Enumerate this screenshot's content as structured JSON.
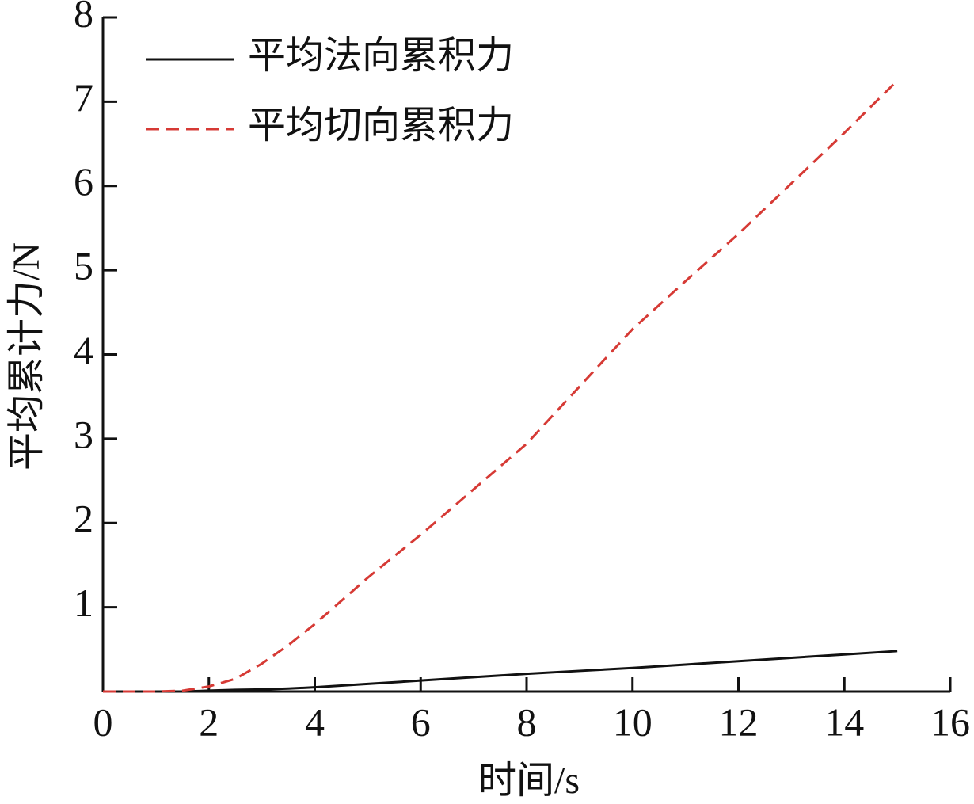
{
  "chart_data": {
    "type": "line",
    "x_label": "时间/s",
    "y_label": "平均累计力/N",
    "x": [
      0,
      1,
      1.5,
      2,
      2.5,
      3,
      3.5,
      4,
      5,
      6,
      7,
      8,
      9,
      10,
      11,
      12,
      13,
      14,
      15
    ],
    "series": [
      {
        "name": "平均法向累积力",
        "color": "#111111",
        "dash": false,
        "values": [
          0,
          0,
          0,
          0.01,
          0.02,
          0.025,
          0.035,
          0.05,
          0.09,
          0.13,
          0.17,
          0.21,
          0.245,
          0.28,
          0.32,
          0.36,
          0.4,
          0.44,
          0.48
        ]
      },
      {
        "name": "平均切向累积力",
        "color": "#d63a35",
        "dash": true,
        "values": [
          0,
          0,
          0.01,
          0.06,
          0.15,
          0.33,
          0.55,
          0.8,
          1.35,
          1.86,
          2.4,
          2.94,
          3.62,
          4.3,
          4.87,
          5.43,
          6.03,
          6.63,
          7.25
        ]
      }
    ],
    "xlim": [
      0,
      16
    ],
    "xticks": [
      0,
      2,
      4,
      6,
      8,
      10,
      12,
      14,
      16
    ],
    "ylim": [
      0,
      8
    ],
    "yticks": [
      1,
      2,
      3,
      4,
      5,
      6,
      7,
      8
    ],
    "legend": "upper-left"
  }
}
